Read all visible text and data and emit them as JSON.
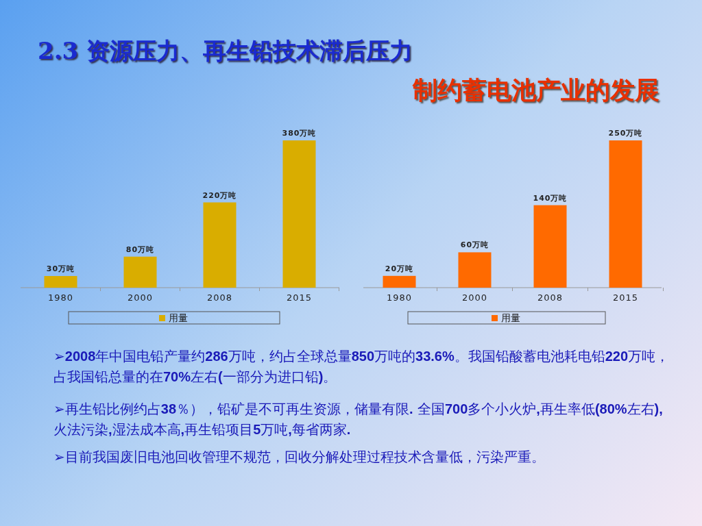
{
  "chart_data": [
    {
      "type": "other",
      "title": "2.3 资源压力、再生铅技术滞后压力",
      "subtitle": "制约蓄电池产业的发展",
      "annotations": [
        "➢**2008**年中国电铅产量约**286**万吨，约占全球总量**850**万吨的**33.6%**。我国铅酸蓄电池耗电铅**220**万吨，占我国铅总量的在**70%**左右**(**一部分为进口铅**)**。",
        "➢再生铅比例约占**38**％），铅矿是不可再生资源，储量有限**.** 全国**700**多个小火炉**,**再生率低**(80%**左右**),**火法污染**,**湿法成本高**,**再生铅项目**5**万吨**,**每省两家**.**",
        "➢目前我国废旧电池回收管理不规范，回收分解处理过程技术含量低，污染严重。"
      ]
    },
    {
      "type": "bar",
      "categories": [
        "1980",
        "2000",
        "2008",
        "2015"
      ],
      "series": [
        {
          "name": "用量",
          "color": "#d9ad00",
          "values": [
            30,
            80,
            220,
            380
          ],
          "value_labels": [
            "30万吨",
            "80万吨",
            "220万吨",
            "380万吨"
          ]
        }
      ],
      "legend": "bottom"
    },
    {
      "type": "bar",
      "categories": [
        "1980",
        "2000",
        "2008",
        "2015"
      ],
      "series": [
        {
          "name": "用量",
          "color": "#ff6a00",
          "values": [
            20,
            60,
            140,
            250
          ],
          "value_labels": [
            "20万吨",
            "60万吨",
            "140万吨",
            "250万吨"
          ]
        }
      ],
      "legend": "bottom"
    }
  ]
}
